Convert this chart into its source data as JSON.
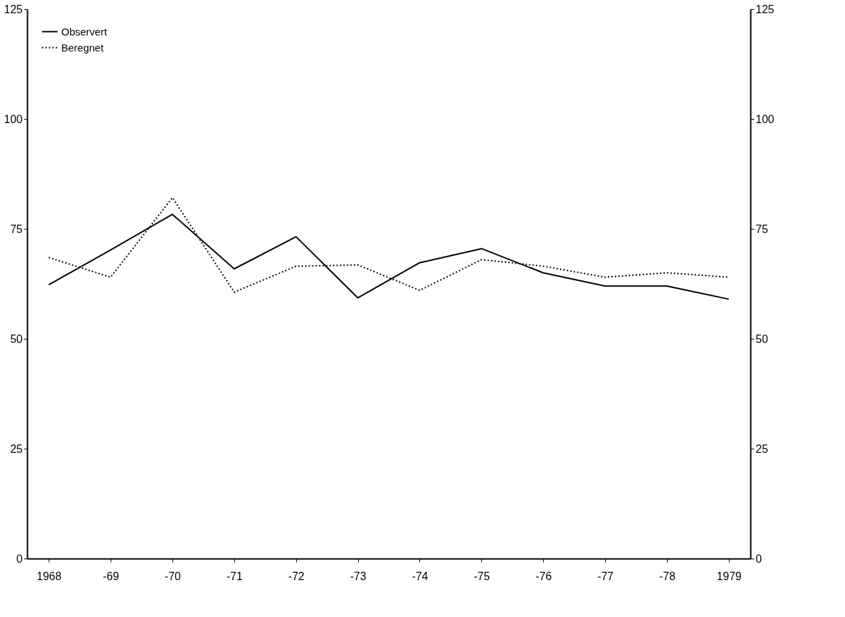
{
  "chart_data": {
    "type": "line",
    "categories": [
      "1968",
      "-69",
      "-70",
      "-71",
      "-72",
      "-73",
      "-74",
      "-75",
      "-76",
      "-77",
      "-78",
      "1979"
    ],
    "series": [
      {
        "name": "Observert",
        "color": "#000000",
        "line_style": "solid",
        "values": [
          62.3,
          70.2,
          78.3,
          65.9,
          73.2,
          59.3,
          67.3,
          70.5,
          65,
          62,
          62,
          59
        ]
      },
      {
        "name": "Beregnet",
        "color": "#000000",
        "line_style": "dotted",
        "values": [
          68.5,
          64,
          82.1,
          60.6,
          66.5,
          66.8,
          61,
          68,
          66.5,
          64,
          65,
          64
        ]
      }
    ],
    "ylim": [
      0,
      125
    ],
    "yticks": [
      0,
      25,
      50,
      75,
      100,
      125
    ],
    "y2lim": [
      0,
      125
    ],
    "y2ticks": [
      0,
      25,
      50,
      75,
      100,
      125
    ],
    "legend": "top left",
    "grid": false,
    "marker": "none"
  }
}
